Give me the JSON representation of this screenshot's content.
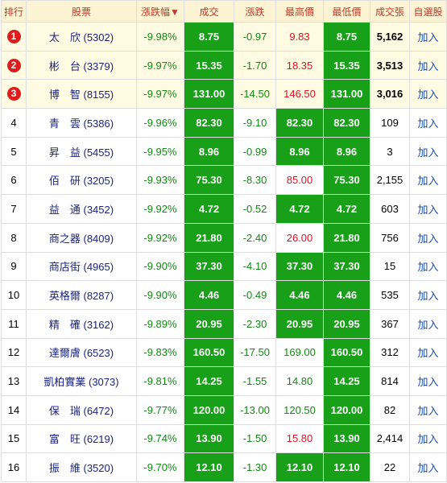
{
  "header": [
    "排行",
    "股票",
    "漲跌幅▼",
    "成交",
    "漲跌",
    "最高價",
    "最低價",
    "成交張",
    "自選股"
  ],
  "rows": [
    [
      "1",
      "太　欣 (5302)",
      "-9.98%",
      "8.75",
      "-0.97",
      "9.83",
      "8.75",
      "5,162",
      "加入"
    ],
    [
      "2",
      "彬　台 (3379)",
      "-9.97%",
      "15.35",
      "-1.70",
      "18.35",
      "15.35",
      "3,513",
      "加入"
    ],
    [
      "3",
      "博　智 (8155)",
      "-9.97%",
      "131.00",
      "-14.50",
      "146.50",
      "131.00",
      "3,016",
      "加入"
    ],
    [
      "4",
      "青　雲 (5386)",
      "-9.96%",
      "82.30",
      "-9.10",
      "82.30",
      "82.30",
      "109",
      "加入"
    ],
    [
      "5",
      "昇　益 (5455)",
      "-9.95%",
      "8.96",
      "-0.99",
      "8.96",
      "8.96",
      "3",
      "加入"
    ],
    [
      "6",
      "佰　研 (3205)",
      "-9.93%",
      "75.30",
      "-8.30",
      "85.00",
      "75.30",
      "2,155",
      "加入"
    ],
    [
      "7",
      "益　通 (3452)",
      "-9.92%",
      "4.72",
      "-0.52",
      "4.72",
      "4.72",
      "603",
      "加入"
    ],
    [
      "8",
      "商之器 (8409)",
      "-9.92%",
      "21.80",
      "-2.40",
      "26.00",
      "21.80",
      "756",
      "加入"
    ],
    [
      "9",
      "商店街 (4965)",
      "-9.90%",
      "37.30",
      "-4.10",
      "37.30",
      "37.30",
      "15",
      "加入"
    ],
    [
      "10",
      "英格爾 (8287)",
      "-9.90%",
      "4.46",
      "-0.49",
      "4.46",
      "4.46",
      "535",
      "加入"
    ],
    [
      "11",
      "精　確 (3162)",
      "-9.89%",
      "20.95",
      "-2.30",
      "20.95",
      "20.95",
      "367",
      "加入"
    ],
    [
      "12",
      "達爾膚 (6523)",
      "-9.83%",
      "160.50",
      "-17.50",
      "169.00",
      "160.50",
      "312",
      "加入"
    ],
    [
      "13",
      "凱柏實業 (3073)",
      "-9.81%",
      "14.25",
      "-1.55",
      "14.80",
      "14.25",
      "814",
      "加入"
    ],
    [
      "14",
      "保　瑞 (6472)",
      "-9.77%",
      "120.00",
      "-13.00",
      "120.50",
      "120.00",
      "82",
      "加入"
    ],
    [
      "15",
      "富　旺 (6219)",
      "-9.74%",
      "13.90",
      "-1.50",
      "15.80",
      "13.90",
      "2,414",
      "加入"
    ],
    [
      "16",
      "振　維 (3520)",
      "-9.70%",
      "12.10",
      "-1.30",
      "12.10",
      "12.10",
      "22",
      "加入"
    ]
  ]
}
